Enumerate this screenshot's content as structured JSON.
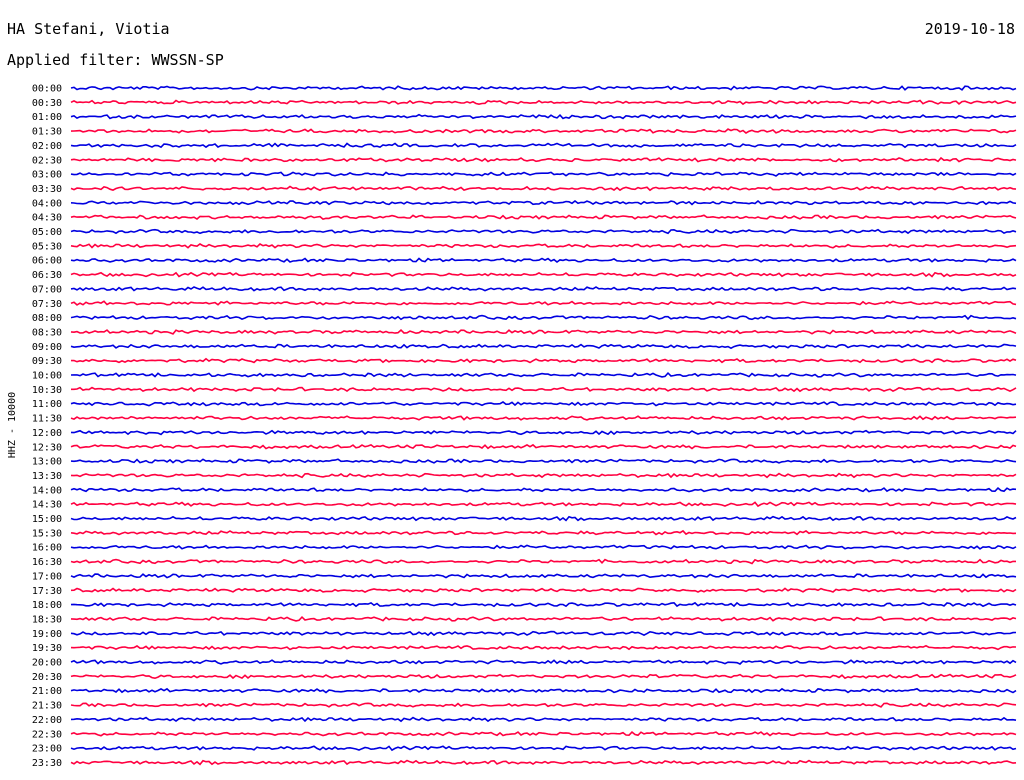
{
  "header": {
    "station": "HA Stefani, Viotia",
    "filter": "Applied filter: WWSSN-SP",
    "date": "2019-10-18"
  },
  "chart_data": {
    "type": "line",
    "title": "HA Stefani, Viotia",
    "subtitle": "Applied filter: WWSSN-SP",
    "date": "2019-10-18",
    "ylabel": "HHZ - 10000",
    "colors": {
      "a": "#0000e0",
      "b": "#ff0040"
    },
    "rows": [
      "00:00",
      "00:30",
      "01:00",
      "01:30",
      "02:00",
      "02:30",
      "03:00",
      "03:30",
      "04:00",
      "04:30",
      "05:00",
      "05:30",
      "06:00",
      "06:30",
      "07:00",
      "07:30",
      "08:00",
      "08:30",
      "09:00",
      "09:30",
      "10:00",
      "10:30",
      "11:00",
      "11:30",
      "12:00",
      "12:30",
      "13:00",
      "13:30",
      "14:00",
      "14:30",
      "15:00",
      "15:30",
      "16:00",
      "16:30",
      "17:00",
      "17:30",
      "18:00",
      "18:30",
      "19:00",
      "19:30",
      "20:00",
      "20:30",
      "21:00",
      "21:30",
      "22:00",
      "22:30",
      "23:00",
      "23:30"
    ]
  }
}
